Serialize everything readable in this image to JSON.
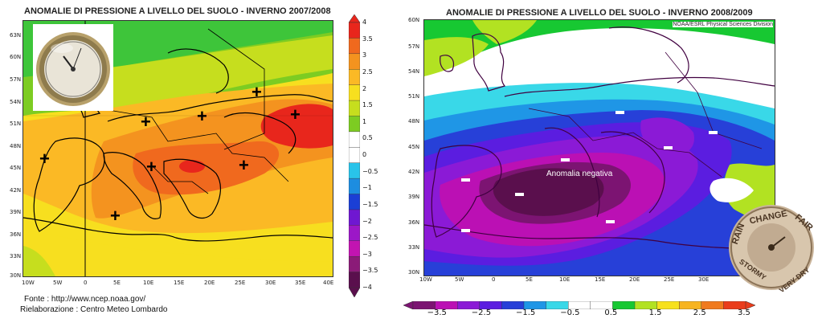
{
  "left": {
    "title": "ANOMALIE DI PRESSIONE A LIVELLO DEL SUOLO - INVERNO 2007/2008",
    "lat_labels": [
      "63N",
      "60N",
      "57N",
      "54N",
      "51N",
      "48N",
      "45N",
      "42N",
      "39N",
      "36N",
      "33N",
      "30N"
    ],
    "lon_labels": [
      "10W",
      "5W",
      "0",
      "5E",
      "10E",
      "15E",
      "20E",
      "25E",
      "30E",
      "35E",
      "40E"
    ],
    "markers": [
      "+",
      "+",
      "+",
      "+",
      "+",
      "+",
      "+",
      "+"
    ],
    "photo_icon": "barometer-icon"
  },
  "right": {
    "title": "ANOMALIE DI PRESSIONE A LIVELLO DEL SUOLO - INVERNO 2008/2009",
    "credit": "NOAA/ESRL Physical Sciences Division",
    "annotation": "Anomalia negativa",
    "lat_labels": [
      "60N",
      "57N",
      "54N",
      "51N",
      "48N",
      "45N",
      "42N",
      "39N",
      "36N",
      "33N",
      "30N"
    ],
    "lon_labels": [
      "10W",
      "5W",
      "0",
      "5E",
      "10E",
      "15E",
      "20E",
      "25E",
      "30E"
    ],
    "markers": [
      "-",
      "-",
      "-",
      "-",
      "-",
      "-",
      "-",
      "-"
    ],
    "photo_icon": "barometer-dial-icon",
    "dial_words": [
      "RAIN",
      "CHANGE",
      "FAIR",
      "STORMY",
      "VERY DRY"
    ]
  },
  "source": {
    "line1": "Fonte : http://www.ncep.noaa.gov/",
    "line2": "Rielaborazione : Centro Meteo Lombardo"
  },
  "vertical_scale": {
    "ticks": [
      "4",
      "3.5",
      "3",
      "2.5",
      "2",
      "1.5",
      "1",
      "0.5",
      "0",
      "−0.5",
      "−1",
      "−1.5",
      "−2",
      "−2.5",
      "−3",
      "−3.5",
      "−4"
    ],
    "colors": [
      "#e8261c",
      "#f0691e",
      "#f4931f",
      "#fbb925",
      "#f7df1f",
      "#c6de1e",
      "#7dcc22",
      "#ffffff",
      "#ffffff",
      "#29c3e9",
      "#1d8de0",
      "#1b3fd5",
      "#6f17d1",
      "#9c17c7",
      "#c214b1",
      "#8b1b78",
      "#5a0f4d"
    ]
  },
  "horizontal_scale": {
    "ticks": [
      "−3.5",
      "−2.5",
      "−1.5",
      "−0.5",
      "0.5",
      "1.5",
      "2.5",
      "3.5"
    ],
    "colors": [
      "#7c1472",
      "#bb10b4",
      "#8b1ad6",
      "#5b1de0",
      "#2740d8",
      "#1f96e6",
      "#39d8e8",
      "#ffffff",
      "#ffffff",
      "#17c832",
      "#b2e222",
      "#f7e11d",
      "#f7b420",
      "#f07a1e",
      "#ea3c1b"
    ]
  }
}
